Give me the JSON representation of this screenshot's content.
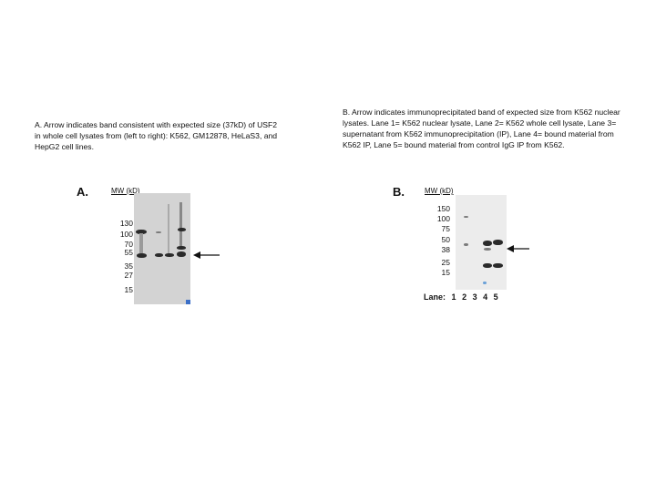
{
  "panel_a": {
    "caption": "A.  Arrow indicates band consistent with expected size (37kD) of USF2 in whole cell lysates from (left to right): K562, GM12878, HeLaS3, and HepG2 cell lines.",
    "letter": "A.",
    "mw_header": "MW (kD)",
    "mw_markers": [
      "130",
      "100",
      "70",
      "55",
      "35",
      "27",
      "15"
    ]
  },
  "panel_b": {
    "caption": "B.  Arrow indicates immunoprecipitated band of expected size from K562 nuclear lysates.  Lane 1= K562 nuclear lysate, Lane 2= K562 whole cell lysate, Lane 3= supernatant from K562 immunoprecipitation (IP), Lane 4= bound material from K562 IP, Lane 5= bound material from control IgG IP from K562.",
    "letter": "B.",
    "mw_header": "MW (kD)",
    "mw_markers": [
      "150",
      "100",
      "75",
      "50",
      "38",
      "25",
      "15"
    ],
    "lane_label": "Lane:",
    "lanes": [
      "1",
      "2",
      "3",
      "4",
      "5"
    ]
  }
}
